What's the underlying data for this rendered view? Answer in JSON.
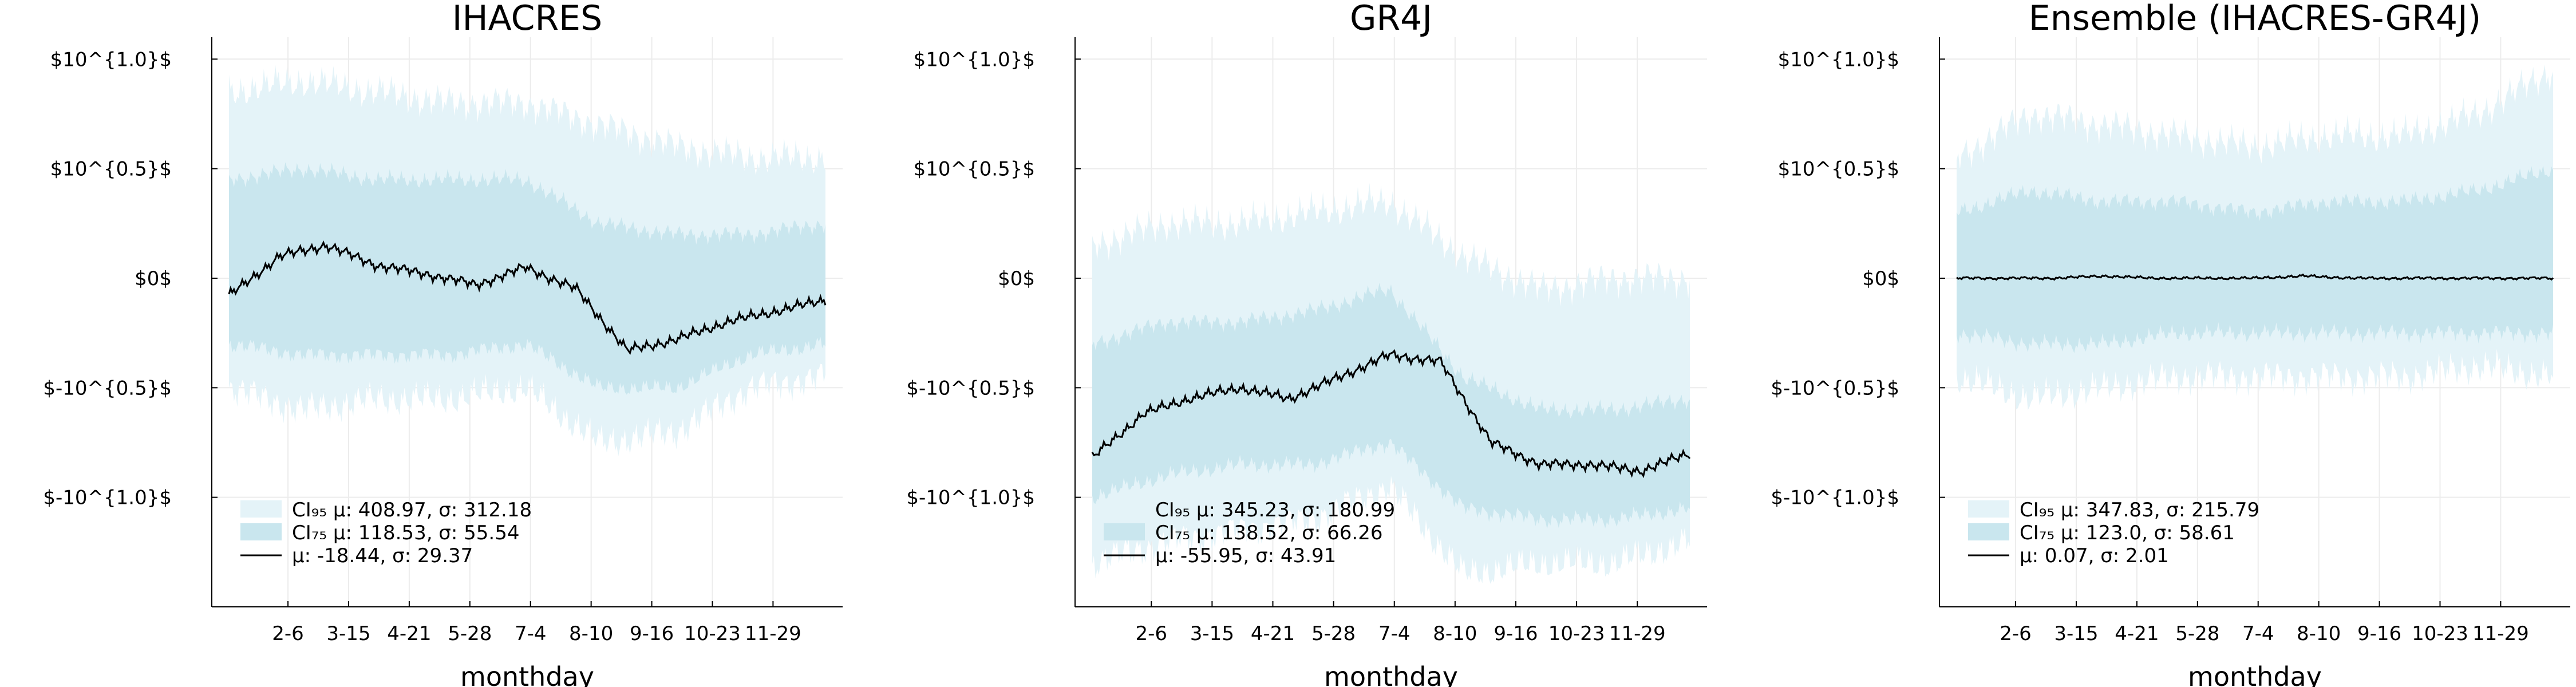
{
  "figure": {
    "background": "#ffffff",
    "colors": {
      "ci95": "#e4f3f8",
      "ci75": "#c9e6ee",
      "mean": "#000000",
      "grid": "#ececec"
    }
  },
  "chart_data": [
    {
      "type": "area",
      "title": "IHACRES",
      "xlabel": "monthday",
      "ylabel": "",
      "xticks": [
        "2-6",
        "3-15",
        "4-21",
        "5-28",
        "7-4",
        "8-10",
        "9-16",
        "10-23",
        "11-29"
      ],
      "yticks": [
        "$10^{1.0}$",
        "$10^{0.5}$",
        "$0$",
        "$-10^{0.5}$",
        "$-10^{1.0}$"
      ],
      "ytick_values": [
        1.0,
        0.5,
        0.0,
        -0.5,
        -1.0
      ],
      "ylim": [
        -1.5,
        1.1
      ],
      "xlim": [
        "1-1",
        "12-31"
      ],
      "grid": true,
      "legend_position": "bottom-left",
      "series": [
        {
          "name": "CI₉₅ μ: 408.97, σ: 312.18",
          "kind": "band",
          "x": [
            "1-1",
            "2-15",
            "4-1",
            "5-15",
            "7-1",
            "8-15",
            "10-1",
            "11-15",
            "12-31"
          ],
          "lower": [
            -0.5,
            -0.6,
            -0.55,
            -0.55,
            -0.5,
            -0.75,
            -0.7,
            -0.5,
            -0.45
          ],
          "upper": [
            0.85,
            0.9,
            0.85,
            0.8,
            0.8,
            0.7,
            0.6,
            0.55,
            0.55
          ]
        },
        {
          "name": "CI₇₅ μ: 118.53, σ: 55.54",
          "kind": "band",
          "x": [
            "1-1",
            "2-15",
            "4-1",
            "5-15",
            "7-1",
            "8-15",
            "10-1",
            "11-15",
            "12-31"
          ],
          "lower": [
            -0.3,
            -0.35,
            -0.35,
            -0.35,
            -0.3,
            -0.5,
            -0.5,
            -0.35,
            -0.3
          ],
          "upper": [
            0.45,
            0.5,
            0.45,
            0.45,
            0.45,
            0.25,
            0.2,
            0.2,
            0.25
          ]
        },
        {
          "name": "μ: -18.44, σ: 29.37",
          "kind": "line",
          "x": [
            "1-1",
            "2-1",
            "3-1",
            "4-1",
            "5-1",
            "6-1",
            "7-1",
            "8-1",
            "9-1",
            "10-1",
            "11-1",
            "12-1",
            "12-31"
          ],
          "y": [
            -0.08,
            0.1,
            0.15,
            0.06,
            0.02,
            -0.03,
            0.05,
            -0.05,
            -0.33,
            -0.28,
            -0.2,
            -0.15,
            -0.1
          ]
        }
      ]
    },
    {
      "type": "area",
      "title": "GR4J",
      "xlabel": "monthday",
      "ylabel": "",
      "xticks": [
        "2-6",
        "3-15",
        "4-21",
        "5-28",
        "7-4",
        "8-10",
        "9-16",
        "10-23",
        "11-29"
      ],
      "yticks": [
        "$10^{1.0}$",
        "$10^{0.5}$",
        "$0$",
        "$-10^{0.5}$",
        "$-10^{1.0}$"
      ],
      "ytick_values": [
        1.0,
        0.5,
        0.0,
        -0.5,
        -1.0
      ],
      "ylim": [
        -1.5,
        1.1
      ],
      "xlim": [
        "1-1",
        "12-31"
      ],
      "grid": true,
      "legend_position": "bottom-left",
      "series": [
        {
          "name": "CI₉₅ μ: 345.23, σ: 180.99",
          "kind": "band",
          "x": [
            "1-1",
            "2-15",
            "4-1",
            "5-15",
            "7-1",
            "8-15",
            "10-1",
            "11-15",
            "12-31"
          ],
          "lower": [
            -1.3,
            -1.2,
            -1.15,
            -1.1,
            -0.95,
            -1.35,
            -1.3,
            -1.3,
            -1.2
          ],
          "upper": [
            0.15,
            0.25,
            0.25,
            0.3,
            0.35,
            0.1,
            -0.05,
            0.0,
            0.0
          ]
        },
        {
          "name": "CI₇₅ μ: 138.52, σ: 66.26",
          "kind": "band",
          "x": [
            "1-1",
            "2-15",
            "4-1",
            "5-15",
            "7-1",
            "8-15",
            "10-1",
            "11-15",
            "12-31"
          ],
          "lower": [
            -1.0,
            -0.9,
            -0.85,
            -0.85,
            -0.75,
            -1.05,
            -1.1,
            -1.1,
            -1.05
          ],
          "upper": [
            -0.3,
            -0.2,
            -0.2,
            -0.15,
            -0.05,
            -0.45,
            -0.6,
            -0.6,
            -0.55
          ]
        },
        {
          "name": "μ: -55.95, σ: 43.91",
          "kind": "line",
          "x": [
            "1-1",
            "2-1",
            "3-1",
            "4-1",
            "5-1",
            "6-1",
            "7-1",
            "8-1",
            "9-1",
            "10-1",
            "11-1",
            "12-1",
            "12-31"
          ],
          "y": [
            -0.82,
            -0.62,
            -0.55,
            -0.5,
            -0.55,
            -0.45,
            -0.35,
            -0.38,
            -0.75,
            -0.85,
            -0.85,
            -0.88,
            -0.8
          ]
        }
      ]
    },
    {
      "type": "area",
      "title": "Ensemble (IHACRES-GR4J)",
      "xlabel": "monthday",
      "ylabel": "",
      "xticks": [
        "2-6",
        "3-15",
        "4-21",
        "5-28",
        "7-4",
        "8-10",
        "9-16",
        "10-23",
        "11-29"
      ],
      "yticks": [
        "$10^{1.0}$",
        "$10^{0.5}$",
        "$0$",
        "$-10^{0.5}$",
        "$-10^{1.0}$"
      ],
      "ytick_values": [
        1.0,
        0.5,
        0.0,
        -0.5,
        -1.0
      ],
      "ylim": [
        -1.5,
        1.1
      ],
      "xlim": [
        "1-1",
        "12-31"
      ],
      "grid": true,
      "legend_position": "bottom-left",
      "series": [
        {
          "name": "CI₉₅ μ: 347.83, σ: 215.79",
          "kind": "band",
          "x": [
            "1-1",
            "2-15",
            "4-1",
            "5-15",
            "7-1",
            "8-15",
            "10-1",
            "11-15",
            "12-31"
          ],
          "lower": [
            -0.45,
            -0.55,
            -0.5,
            -0.45,
            -0.45,
            -0.45,
            -0.45,
            -0.4,
            -0.45
          ],
          "upper": [
            0.55,
            0.75,
            0.7,
            0.65,
            0.6,
            0.65,
            0.65,
            0.75,
            0.95
          ]
        },
        {
          "name": "CI₇₅ μ: 123.0, σ: 58.61",
          "kind": "band",
          "x": [
            "1-1",
            "2-15",
            "4-1",
            "5-15",
            "7-1",
            "8-15",
            "10-1",
            "11-15",
            "12-31"
          ],
          "lower": [
            -0.25,
            -0.3,
            -0.3,
            -0.25,
            -0.25,
            -0.25,
            -0.25,
            -0.25,
            -0.25
          ],
          "upper": [
            0.3,
            0.4,
            0.35,
            0.35,
            0.3,
            0.35,
            0.35,
            0.4,
            0.5
          ]
        },
        {
          "name": "μ: 0.07, σ: 2.01",
          "kind": "line",
          "x": [
            "1-1",
            "2-1",
            "3-1",
            "4-1",
            "5-1",
            "6-1",
            "7-1",
            "8-1",
            "9-1",
            "10-1",
            "11-1",
            "12-1",
            "12-31"
          ],
          "y": [
            0.0,
            0.0,
            0.0,
            0.01,
            0.0,
            0.0,
            0.0,
            0.01,
            0.0,
            0.0,
            0.0,
            0.0,
            0.0
          ]
        }
      ]
    }
  ]
}
